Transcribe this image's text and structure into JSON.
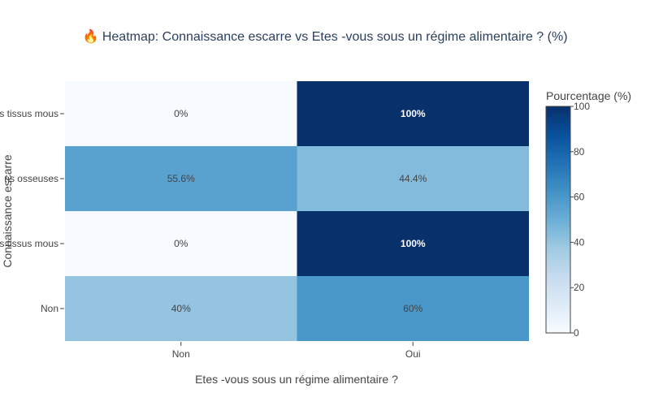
{
  "chart_data": {
    "type": "heatmap",
    "title": "🔥 Heatmap: Connaissance escarre vs Etes -vous sous un régime alimentaire ? (%)",
    "xlabel": "Etes -vous sous un régime alimentaire ?",
    "ylabel": "Connaissance escarre",
    "x_categories": [
      "Non",
      "Oui"
    ],
    "y_categories": [
      "s tissus mous",
      "ns osseuses",
      "s tissus mous",
      "Non"
    ],
    "values": [
      [
        0,
        100
      ],
      [
        55.6,
        44.4
      ],
      [
        0,
        100
      ],
      [
        40,
        60
      ]
    ],
    "cell_labels": [
      [
        "0%",
        "100%"
      ],
      [
        "55.6%",
        "44.4%"
      ],
      [
        "0%",
        "100%"
      ],
      [
        "40%",
        "60%"
      ]
    ],
    "colorbar": {
      "title": "Pourcentage (%)",
      "range": [
        0,
        100
      ],
      "ticks": [
        "0",
        "20",
        "40",
        "60",
        "80",
        "100"
      ]
    },
    "colorscale": "Blues",
    "colors": {
      "title": "#2a3f5f",
      "text": "#444444"
    }
  }
}
